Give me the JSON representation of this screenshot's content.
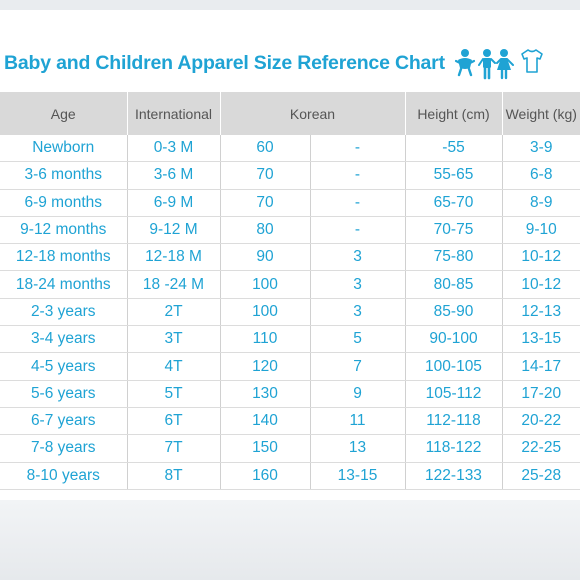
{
  "title": "Baby and Children Apparel Size Reference Chart",
  "accent_color": "#1fa3d4",
  "header_bg": "#d9d9d9",
  "icons": [
    "baby-icon",
    "children-icon",
    "shirt-icon"
  ],
  "columns": [
    "Age",
    "International",
    "Korean",
    "Height (cm)",
    "Weight (kg)"
  ],
  "rows": [
    {
      "age": "Newborn",
      "intl": "0-3 M",
      "kr1": "60",
      "kr2": "-",
      "height": "-55",
      "weight": "3-9"
    },
    {
      "age": "3-6 months",
      "intl": "3-6 M",
      "kr1": "70",
      "kr2": "-",
      "height": "55-65",
      "weight": "6-8"
    },
    {
      "age": "6-9 months",
      "intl": "6-9 M",
      "kr1": "70",
      "kr2": "-",
      "height": "65-70",
      "weight": "8-9"
    },
    {
      "age": "9-12 months",
      "intl": "9-12 M",
      "kr1": "80",
      "kr2": "-",
      "height": "70-75",
      "weight": "9-10"
    },
    {
      "age": "12-18 months",
      "intl": "12-18 M",
      "kr1": "90",
      "kr2": "3",
      "height": "75-80",
      "weight": "10-12"
    },
    {
      "age": "18-24 months",
      "intl": "18 -24 M",
      "kr1": "100",
      "kr2": "3",
      "height": "80-85",
      "weight": "10-12"
    },
    {
      "age": "2-3 years",
      "intl": "2T",
      "kr1": "100",
      "kr2": "3",
      "height": "85-90",
      "weight": "12-13"
    },
    {
      "age": "3-4 years",
      "intl": "3T",
      "kr1": "110",
      "kr2": "5",
      "height": "90-100",
      "weight": "13-15"
    },
    {
      "age": "4-5 years",
      "intl": "4T",
      "kr1": "120",
      "kr2": "7",
      "height": "100-105",
      "weight": "14-17"
    },
    {
      "age": "5-6 years",
      "intl": "5T",
      "kr1": "130",
      "kr2": "9",
      "height": "105-112",
      "weight": "17-20"
    },
    {
      "age": "6-7 years",
      "intl": "6T",
      "kr1": "140",
      "kr2": "11",
      "height": "112-118",
      "weight": "20-22"
    },
    {
      "age": "7-8 years",
      "intl": "7T",
      "kr1": "150",
      "kr2": "13",
      "height": "118-122",
      "weight": "22-25"
    },
    {
      "age": "8-10 years",
      "intl": "8T",
      "kr1": "160",
      "kr2": "13-15",
      "height": "122-133",
      "weight": "25-28"
    }
  ]
}
